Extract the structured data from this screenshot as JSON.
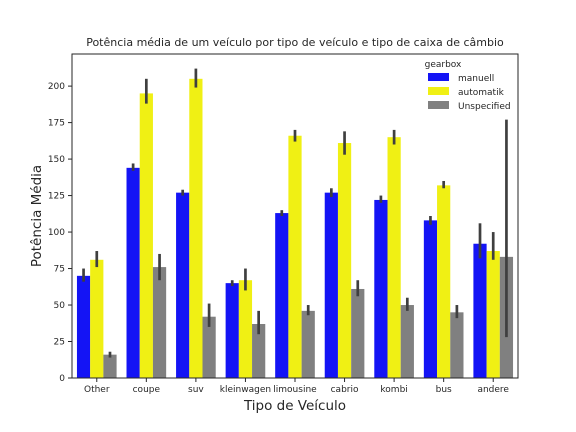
{
  "chart_data": {
    "type": "bar",
    "title": "Potência média de um veículo por tipo de veículo e tipo de caixa de câmbio",
    "xlabel": "Tipo de Veículo",
    "ylabel": "Potência Média",
    "ylim": [
      0,
      222
    ],
    "yticks": [
      0,
      25,
      50,
      75,
      100,
      125,
      150,
      175,
      200
    ],
    "grid": false,
    "legend": {
      "title": "gearbox",
      "placement": "top-right"
    },
    "categories": [
      "Other",
      "coupe",
      "suv",
      "kleinwagen",
      "limousine",
      "cabrio",
      "kombi",
      "bus",
      "andere"
    ],
    "series": [
      {
        "name": "manuell",
        "color": "#1414f5",
        "values": [
          70,
          144,
          127,
          65,
          113,
          127,
          122,
          108,
          92
        ],
        "ci": [
          [
            66,
            75
          ],
          [
            142,
            147
          ],
          [
            125,
            129
          ],
          [
            63,
            67
          ],
          [
            111,
            115
          ],
          [
            124,
            130
          ],
          [
            120,
            125
          ],
          [
            105,
            111
          ],
          [
            82,
            106
          ]
        ]
      },
      {
        "name": "automatik",
        "color": "#f0f014",
        "values": [
          81,
          195,
          205,
          67,
          166,
          161,
          165,
          132,
          87
        ],
        "ci": [
          [
            76,
            87
          ],
          [
            188,
            205
          ],
          [
            199,
            212
          ],
          [
            60,
            75
          ],
          [
            162,
            170
          ],
          [
            153,
            169
          ],
          [
            160,
            170
          ],
          [
            130,
            135
          ],
          [
            81,
            100
          ]
        ]
      },
      {
        "name": "Unspecified",
        "color": "#808080",
        "values": [
          16,
          76,
          42,
          37,
          46,
          61,
          50,
          45,
          83
        ],
        "ci": [
          [
            14,
            18
          ],
          [
            67,
            85
          ],
          [
            35,
            51
          ],
          [
            30,
            46
          ],
          [
            43,
            50
          ],
          [
            56,
            67
          ],
          [
            46,
            55
          ],
          [
            41,
            50
          ],
          [
            28,
            177
          ]
        ]
      }
    ]
  }
}
